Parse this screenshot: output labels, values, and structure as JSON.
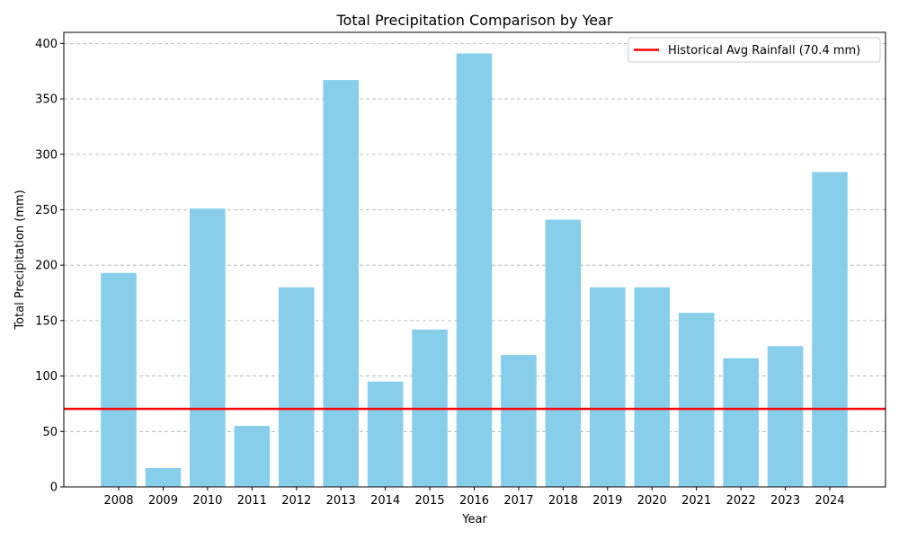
{
  "chart_data": {
    "type": "bar",
    "title": "Total Precipitation Comparison by Year",
    "xlabel": "Year",
    "ylabel": "Total Precipitation (mm)",
    "categories": [
      "2008",
      "2009",
      "2010",
      "2011",
      "2012",
      "2013",
      "2014",
      "2015",
      "2016",
      "2017",
      "2018",
      "2019",
      "2020",
      "2021",
      "2022",
      "2023",
      "2024"
    ],
    "values": [
      193,
      17,
      251,
      55,
      180,
      367,
      95,
      142,
      391,
      119,
      241,
      180,
      180,
      157,
      116,
      127,
      284
    ],
    "ylim": [
      0,
      410
    ],
    "yticks": [
      0,
      50,
      100,
      150,
      200,
      250,
      300,
      350,
      400
    ],
    "grid": "horizontal dashed",
    "bar_color": "#87CEEB",
    "reference_line": {
      "value": 70.4,
      "color": "#FF0000",
      "label": "Historical Avg Rainfall (70.4 mm)"
    },
    "legend_position": "top-right"
  }
}
